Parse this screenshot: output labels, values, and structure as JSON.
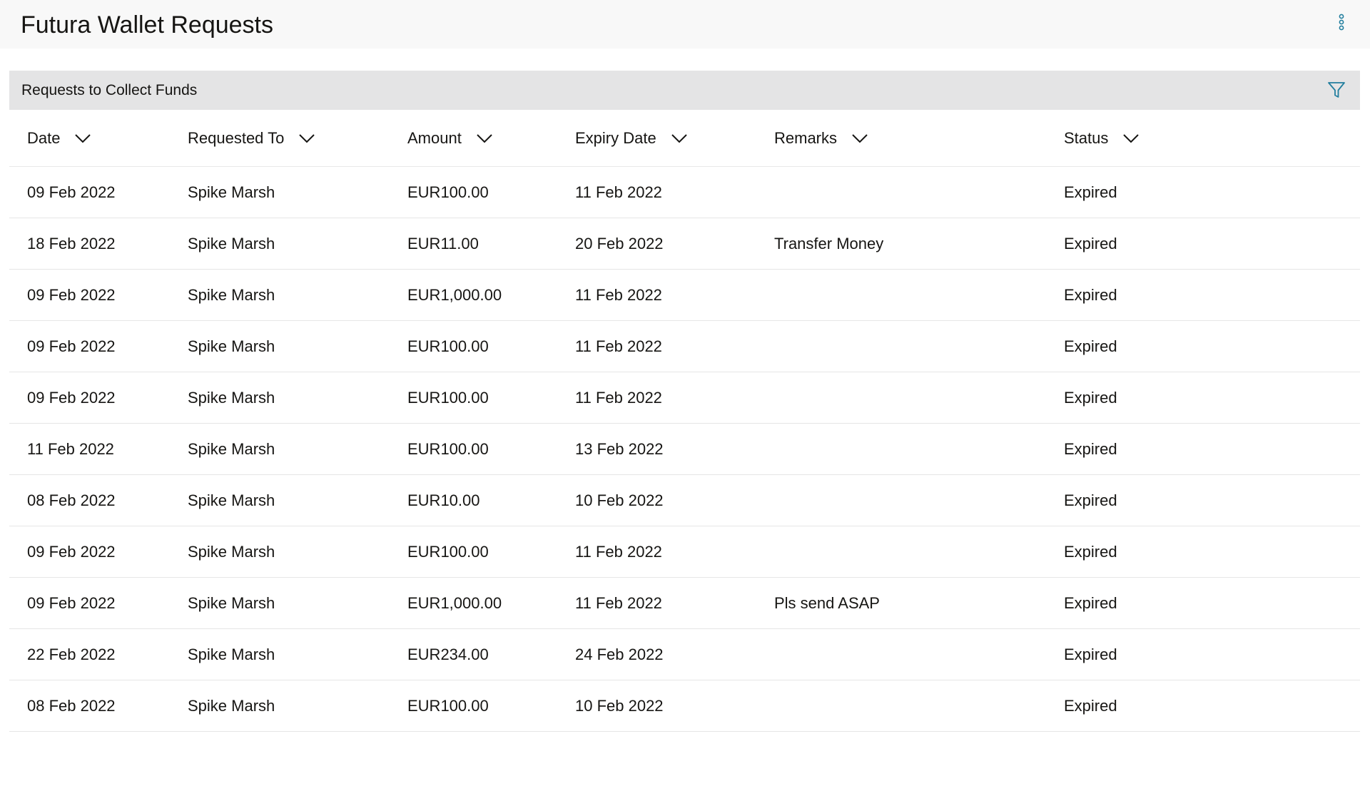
{
  "page": {
    "title": "Futura Wallet Requests",
    "more_options_icon": "kebab-vertical-icon"
  },
  "panel": {
    "title": "Requests to Collect Funds",
    "filter_icon": "filter-funnel-icon"
  },
  "table": {
    "columns": [
      "Date",
      "Requested To",
      "Amount",
      "Expiry Date",
      "Remarks",
      "Status"
    ],
    "sort_icon": "chevron-down-icon",
    "rows": [
      {
        "date": "09 Feb 2022",
        "to": "Spike Marsh",
        "amount": "EUR100.00",
        "expiry": "11 Feb 2022",
        "remarks": "",
        "status": "Expired"
      },
      {
        "date": "18 Feb 2022",
        "to": "Spike Marsh",
        "amount": "EUR11.00",
        "expiry": "20 Feb 2022",
        "remarks": "Transfer Money",
        "status": "Expired"
      },
      {
        "date": "09 Feb 2022",
        "to": "Spike Marsh",
        "amount": "EUR1,000.00",
        "expiry": "11 Feb 2022",
        "remarks": "",
        "status": "Expired"
      },
      {
        "date": "09 Feb 2022",
        "to": "Spike Marsh",
        "amount": "EUR100.00",
        "expiry": "11 Feb 2022",
        "remarks": "",
        "status": "Expired"
      },
      {
        "date": "09 Feb 2022",
        "to": "Spike Marsh",
        "amount": "EUR100.00",
        "expiry": "11 Feb 2022",
        "remarks": "",
        "status": "Expired"
      },
      {
        "date": "11 Feb 2022",
        "to": "Spike Marsh",
        "amount": "EUR100.00",
        "expiry": "13 Feb 2022",
        "remarks": "",
        "status": "Expired"
      },
      {
        "date": "08 Feb 2022",
        "to": "Spike Marsh",
        "amount": "EUR10.00",
        "expiry": "10 Feb 2022",
        "remarks": "",
        "status": "Expired"
      },
      {
        "date": "09 Feb 2022",
        "to": "Spike Marsh",
        "amount": "EUR100.00",
        "expiry": "11 Feb 2022",
        "remarks": "",
        "status": "Expired"
      },
      {
        "date": "09 Feb 2022",
        "to": "Spike Marsh",
        "amount": "EUR1,000.00",
        "expiry": "11 Feb 2022",
        "remarks": "Pls send ASAP",
        "status": "Expired"
      },
      {
        "date": "22 Feb 2022",
        "to": "Spike Marsh",
        "amount": "EUR234.00",
        "expiry": "24 Feb 2022",
        "remarks": "",
        "status": "Expired"
      },
      {
        "date": "08 Feb 2022",
        "to": "Spike Marsh",
        "amount": "EUR100.00",
        "expiry": "10 Feb 2022",
        "remarks": "",
        "status": "Expired"
      }
    ]
  },
  "colors": {
    "status_expired": "#d25f10",
    "accent_icon": "#227e9e",
    "panel_header_bg": "#e4e4e5"
  }
}
